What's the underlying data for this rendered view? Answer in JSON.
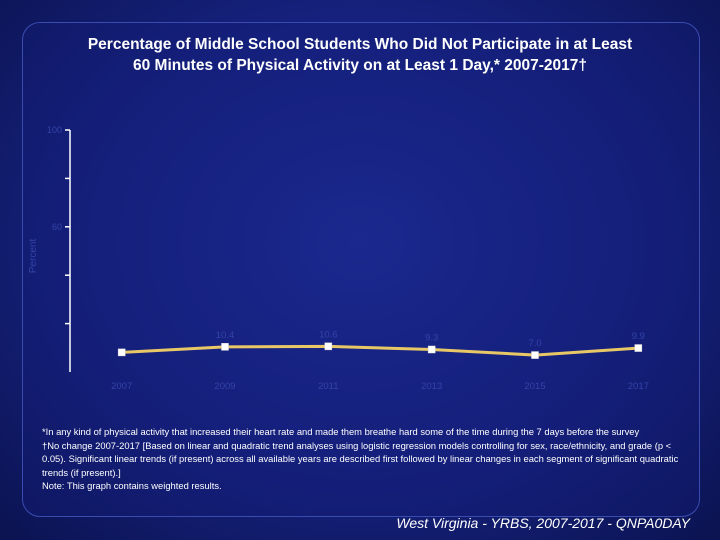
{
  "colors": {
    "background": "#15217c",
    "line": "#e8c766",
    "axis": "#ffffff",
    "text": "#ffffff",
    "faint_text": "#3344a8"
  },
  "title_lines": [
    "Percentage of Middle School Students Who Did Not Participate in at Least",
    "60 Minutes of Physical Activity on at Least 1 Day,* 2007-2017†"
  ],
  "chart_data": {
    "type": "line",
    "title": "Percentage of Middle School Students Who Did Not Participate in at Least 60 Minutes of Physical Activity on at Least 1 Day,* 2007-2017†",
    "xlabel": "",
    "ylabel": "Percent",
    "categories": [
      "2007",
      "2009",
      "2011",
      "2013",
      "2015",
      "2017"
    ],
    "series": [
      {
        "values": [
          8.1,
          10.4,
          10.6,
          9.3,
          7.0,
          9.9
        ]
      }
    ],
    "data_labels": [
      "",
      "10.4",
      "10.6",
      "9.3",
      "7.0",
      "9.9"
    ],
    "yticks": [
      "100",
      "",
      "60",
      "",
      ""
    ],
    "ylim": [
      0,
      100
    ],
    "grid": false,
    "legend": "none"
  },
  "footnotes": [
    "*In any kind of physical activity that increased their heart rate and made them breathe hard some of the time during the 7 days before the survey",
    "†No change 2007-2017 [Based on linear and quadratic trend analyses using logistic regression models controlling for sex, race/ethnicity, and grade (p < 0.05). Significant linear trends (if present) across all available years are described first followed by linear changes in each segment of significant quadratic trends (if present).]",
    "Note: This graph contains weighted results."
  ],
  "source": "West Virginia - YRBS, 2007-2017 - QNPA0DAY"
}
